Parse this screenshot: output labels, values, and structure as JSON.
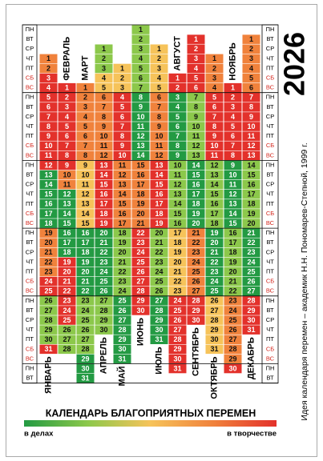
{
  "year": 2026,
  "title": "КАЛЕНДАРЬ БЛАГОПРИЯТНЫХ ПЕРЕМЕН",
  "legend": {
    "left": "в делах",
    "right": "в творчестве"
  },
  "credit": "Идея календаря перемен – академик Н.Н. Пономарев-Степной, 1999 г.",
  "palette": [
    "#239a43",
    "#8cc84b",
    "#f6c35a",
    "#f0823c",
    "#e3312b"
  ],
  "weekdays": [
    "ПН",
    "ВТ",
    "СР",
    "ЧТ",
    "ПТ",
    "СБ",
    "ВС",
    "ПН",
    "ВТ",
    "СР",
    "ЧТ",
    "ПТ",
    "СБ",
    "ВС",
    "ПН",
    "ВТ",
    "СР",
    "ЧТ",
    "ПТ",
    "СБ",
    "ВС",
    "ПН",
    "ВТ",
    "СР",
    "ЧТ",
    "ПТ",
    "СБ",
    "ВС",
    "ПН",
    "ВТ",
    "СР",
    "ЧТ",
    "ПТ",
    "СБ",
    "ВС",
    "ПН",
    "ВТ"
  ],
  "months": [
    {
      "name": "ЯНВАРЬ",
      "days": [
        1,
        2,
        3,
        4,
        5,
        6,
        7,
        8,
        9,
        10,
        11,
        12,
        13,
        14,
        15,
        16,
        17,
        18,
        19,
        20,
        21,
        22,
        23,
        24,
        25,
        26,
        27,
        28,
        29,
        30,
        31
      ],
      "levels": [
        3,
        3,
        4,
        4,
        4,
        4,
        4,
        4,
        4,
        4,
        4,
        4,
        0,
        0,
        0,
        0,
        0,
        0,
        3,
        3,
        3,
        3,
        3,
        4,
        4,
        1,
        1,
        1,
        1,
        1,
        4
      ]
    },
    {
      "name": "ФЕВРАЛЬ",
      "days": [
        1,
        2,
        3,
        4,
        5,
        6,
        7,
        8,
        9,
        10,
        11,
        12,
        13,
        14,
        15,
        16,
        17,
        18,
        19,
        20,
        21,
        22,
        23,
        24,
        25,
        26,
        27,
        28
      ],
      "levels": [
        4,
        4,
        4,
        4,
        4,
        4,
        4,
        4,
        4,
        3,
        3,
        0,
        0,
        0,
        0,
        0,
        0,
        0,
        4,
        4,
        4,
        4,
        4,
        4,
        4,
        1,
        1,
        1
      ]
    },
    {
      "name": "МАРТ",
      "days": [
        1,
        2,
        3,
        4,
        5,
        6,
        7,
        8,
        9,
        10,
        11,
        12,
        13,
        14,
        15,
        16,
        17,
        18,
        19,
        20,
        21,
        22,
        23,
        24,
        25,
        26,
        27,
        28,
        29,
        30,
        31
      ],
      "levels": [
        3,
        3,
        3,
        3,
        3,
        3,
        3,
        3,
        2,
        2,
        2,
        2,
        2,
        2,
        2,
        0,
        0,
        0,
        0,
        0,
        0,
        0,
        1,
        1,
        1,
        1,
        1,
        1,
        0,
        0,
        0
      ]
    },
    {
      "name": "АПРЕЛЬ",
      "days": [
        1,
        2,
        3,
        4,
        5,
        6,
        7,
        8,
        9,
        10,
        11,
        12,
        13,
        14,
        15,
        16,
        17,
        18,
        19,
        20,
        21,
        22,
        23,
        24,
        25,
        26,
        27,
        28,
        29,
        30
      ],
      "levels": [
        1,
        1,
        1,
        2,
        2,
        3,
        3,
        3,
        3,
        3,
        3,
        3,
        4,
        4,
        4,
        4,
        4,
        4,
        4,
        0,
        0,
        0,
        0,
        0,
        0,
        0,
        1,
        1,
        1,
        1
      ]
    },
    {
      "name": "МАЙ",
      "days": [
        1,
        2,
        3,
        4,
        5,
        6,
        7,
        8,
        9,
        10,
        11,
        12,
        13,
        14,
        15,
        16,
        17,
        18,
        19,
        20,
        21,
        22,
        23,
        24,
        25,
        26,
        27,
        28,
        29,
        30,
        31
      ],
      "levels": [
        2,
        2,
        2,
        4,
        4,
        4,
        4,
        4,
        4,
        4,
        3,
        3,
        3,
        3,
        3,
        3,
        3,
        1,
        1,
        1,
        1,
        1,
        1,
        1,
        0,
        0,
        0,
        0,
        0,
        0,
        0
      ]
    },
    {
      "name": "ИЮНЬ",
      "days": [
        1,
        2,
        3,
        4,
        5,
        6,
        7,
        8,
        9,
        10,
        11,
        12,
        13,
        14,
        15,
        16,
        17,
        18,
        19,
        20,
        21,
        22,
        23,
        24,
        25,
        26,
        27,
        28,
        29,
        30
      ],
      "levels": [
        1,
        1,
        1,
        1,
        1,
        1,
        1,
        0,
        0,
        0,
        0,
        0,
        0,
        0,
        3,
        3,
        3,
        3,
        3,
        3,
        3,
        4,
        4,
        4,
        4,
        4,
        4,
        4,
        4,
        4
      ]
    },
    {
      "name": "ИЮЛЬ",
      "days": [
        1,
        2,
        3,
        4,
        5,
        6,
        7,
        8,
        9,
        10,
        11,
        12,
        13,
        14,
        15,
        16,
        17,
        18,
        19,
        20,
        21,
        22,
        23,
        24,
        25,
        26,
        27,
        28,
        29,
        30,
        31
      ],
      "levels": [
        2,
        2,
        2,
        2,
        2,
        3,
        3,
        3,
        3,
        3,
        3,
        3,
        4,
        4,
        4,
        4,
        4,
        4,
        4,
        1,
        1,
        1,
        1,
        1,
        1,
        1,
        0,
        0,
        0,
        0,
        0
      ]
    },
    {
      "name": "АВГУСТ",
      "days": [
        1,
        2,
        3,
        4,
        5,
        6,
        7,
        8,
        9,
        10,
        11,
        12,
        13,
        14,
        15,
        16,
        17,
        18,
        19,
        20,
        21,
        22,
        23,
        24,
        25,
        26,
        27,
        28,
        29,
        30,
        31
      ],
      "levels": [
        4,
        4,
        0,
        0,
        0,
        0,
        0,
        0,
        0,
        1,
        1,
        1,
        1,
        1,
        1,
        1,
        2,
        2,
        2,
        2,
        2,
        2,
        2,
        4,
        4,
        4,
        4,
        4,
        4,
        4,
        4
      ]
    },
    {
      "name": "СЕНТЯБРЬ",
      "days": [
        1,
        2,
        3,
        4,
        5,
        6,
        7,
        8,
        9,
        10,
        11,
        12,
        13,
        14,
        15,
        16,
        17,
        18,
        19,
        20,
        21,
        22,
        23,
        24,
        25,
        26,
        27,
        28,
        29,
        30
      ],
      "levels": [
        4,
        4,
        4,
        4,
        4,
        4,
        1,
        1,
        1,
        1,
        1,
        1,
        1,
        0,
        0,
        0,
        0,
        0,
        0,
        0,
        3,
        3,
        3,
        3,
        3,
        3,
        3,
        4,
        4,
        4
      ]
    },
    {
      "name": "ОКТЯБРЬ",
      "days": [
        1,
        2,
        3,
        4,
        5,
        6,
        7,
        8,
        9,
        10,
        11,
        12,
        13,
        14,
        15,
        16,
        17,
        18,
        19,
        20,
        21,
        22,
        23,
        24,
        25,
        26,
        27,
        28,
        29,
        30,
        31
      ],
      "levels": [
        3,
        3,
        3,
        3,
        4,
        4,
        4,
        4,
        4,
        4,
        4,
        1,
        1,
        1,
        1,
        1,
        1,
        1,
        0,
        0,
        0,
        0,
        0,
        0,
        0,
        2,
        2,
        2,
        2,
        2,
        2
      ]
    },
    {
      "name": "НОЯБРЬ",
      "days": [
        1,
        2,
        3,
        4,
        5,
        6,
        7,
        8,
        9,
        10,
        11,
        12,
        13,
        14,
        15,
        16,
        17,
        18,
        19,
        20,
        21,
        22,
        23,
        24,
        25,
        26,
        27,
        28,
        29,
        30
      ],
      "levels": [
        4,
        4,
        4,
        4,
        4,
        4,
        4,
        4,
        0,
        0,
        0,
        0,
        0,
        0,
        0,
        1,
        1,
        1,
        1,
        1,
        1,
        1,
        3,
        3,
        3,
        3,
        3,
        3,
        3,
        4
      ]
    },
    {
      "name": "ДЕКАБРЬ",
      "days": [
        1,
        2,
        3,
        4,
        5,
        6,
        7,
        8,
        9,
        10,
        11,
        12,
        13,
        14,
        15,
        16,
        17,
        18,
        19,
        20,
        21,
        22,
        23,
        24,
        25,
        26,
        27,
        28,
        29,
        30,
        31
      ],
      "levels": [
        3,
        3,
        3,
        3,
        3,
        3,
        4,
        4,
        4,
        4,
        4,
        4,
        4,
        1,
        1,
        1,
        1,
        1,
        1,
        1,
        0,
        0,
        0,
        0,
        0,
        0,
        0,
        4,
        4,
        4,
        4
      ]
    }
  ]
}
